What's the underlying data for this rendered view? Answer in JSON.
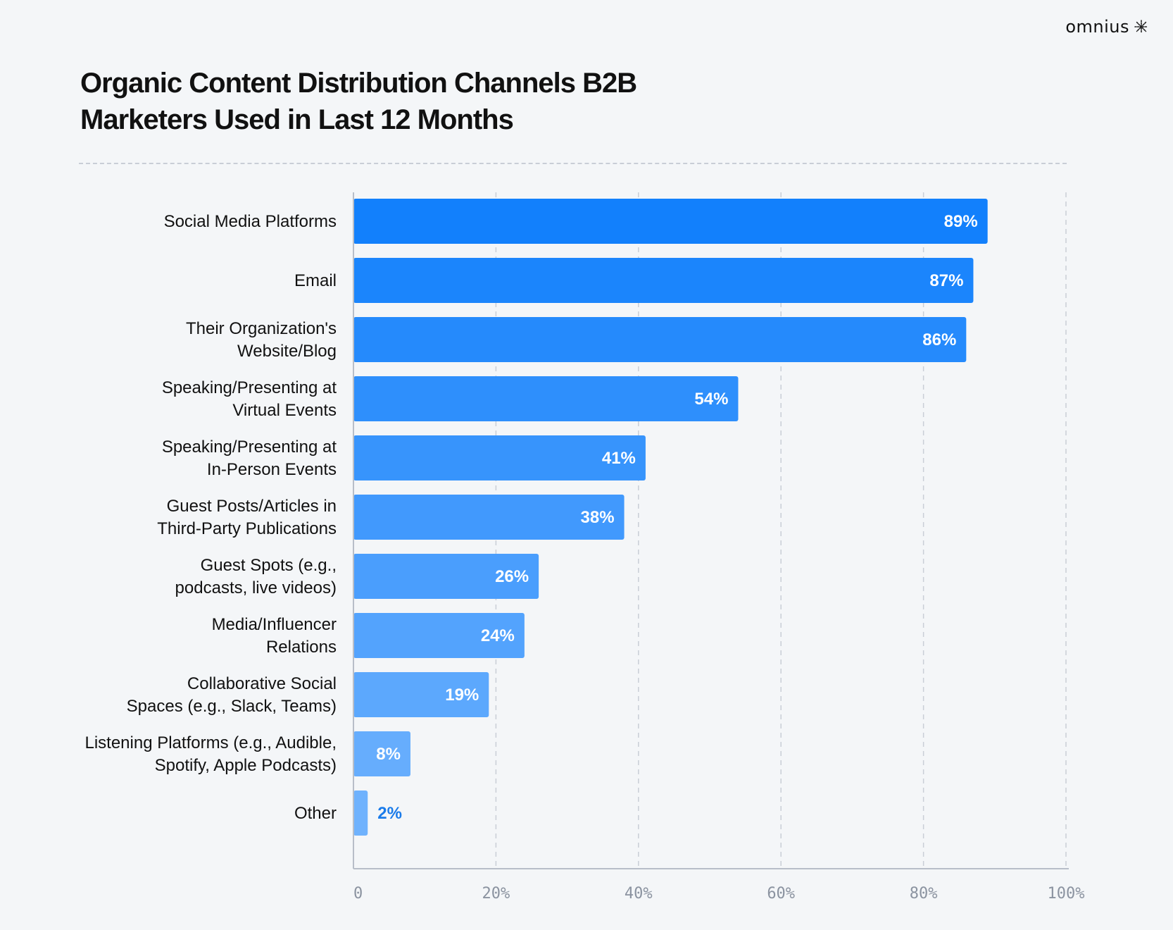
{
  "brand": {
    "name": "omnius",
    "icon": "starburst-icon"
  },
  "title_lines": [
    "Organic Content Distribution Channels B2B",
    "Marketers Used in Last 12 Months"
  ],
  "chart_data": {
    "type": "bar",
    "orientation": "horizontal",
    "title": "Organic Content Distribution Channels B2B Marketers Used in Last 12 Months",
    "categories": [
      [
        "Social Media Platforms"
      ],
      [
        "Email"
      ],
      [
        "Their Organization's",
        "Website/Blog"
      ],
      [
        "Speaking/Presenting at",
        "Virtual Events"
      ],
      [
        "Speaking/Presenting at",
        "In-Person Events"
      ],
      [
        "Guest Posts/Articles in",
        "Third-Party Publications"
      ],
      [
        "Guest Spots (e.g.,",
        "podcasts, live videos)"
      ],
      [
        "Media/Influencer",
        "Relations"
      ],
      [
        "Collaborative Social",
        "Spaces (e.g., Slack, Teams)"
      ],
      [
        "Listening Platforms (e.g., Audible,",
        "Spotify, Apple Podcasts)"
      ],
      [
        "Other"
      ]
    ],
    "values": [
      89,
      87,
      86,
      54,
      41,
      38,
      26,
      24,
      19,
      8,
      2
    ],
    "value_labels": [
      "89%",
      "87%",
      "86%",
      "54%",
      "41%",
      "38%",
      "26%",
      "24%",
      "19%",
      "8%",
      "2%"
    ],
    "xlim": [
      0,
      100
    ],
    "xticks": [
      0,
      20,
      40,
      60,
      80,
      100
    ],
    "xtick_labels": [
      "0",
      "20%",
      "40%",
      "60%",
      "80%",
      "100%"
    ],
    "grid": true,
    "grid_style": "dashed vertical",
    "colors": {
      "bar_top": "#1280fc",
      "bar_bottom": "#6fb2fd",
      "value_label_inside": "#ffffff",
      "value_label_outside": "#1a7bea",
      "grid": "#c9ced6",
      "axis": "#b8bec8",
      "tick_text": "#8b93a0"
    }
  }
}
